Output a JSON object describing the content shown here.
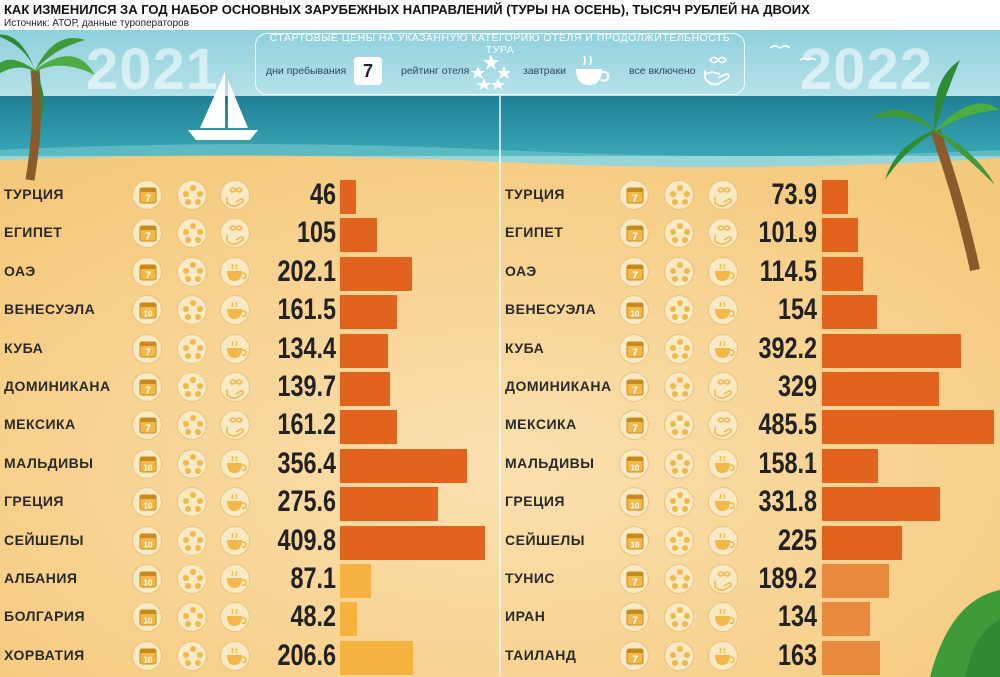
{
  "title": "КАК ИЗМЕНИЛСЯ ЗА ГОД НАБОР ОСНОВНЫХ ЗАРУБЕЖНЫХ НАПРАВЛЕНИЙ (ТУРЫ НА ОСЕНЬ), ТЫСЯЧ РУБЛЕЙ НА ДВОИХ",
  "source": "Источник: АТОР, данные туроператоров",
  "legend": {
    "title": "СТАРТОВЫЕ ЦЕНЫ НА УКАЗАННУЮ КАТЕГОРИЮ ОТЕЛЯ И ПРОДОЛЖИТЕЛЬНОСТЬ ТУРА",
    "days_label": "дни пребывания",
    "days_value": "7",
    "rating_label": "рейтинг отеля",
    "breakfast_label": "завтраки",
    "all_inclusive_label": "все включено"
  },
  "colors": {
    "bar_main": "#e2631e",
    "bar_light_2021": "#f6b240",
    "bar_light_2022": "#e88a3e",
    "sand": "#f6d291",
    "sea": "#2b8fa3",
    "sky": "#8fd0dd"
  },
  "chart_data": [
    {
      "type": "bar",
      "year": "2021",
      "categories": [
        "ТУРЦИЯ",
        "ЕГИПЕТ",
        "ОАЭ",
        "ВЕНЕСУЭЛА",
        "КУБА",
        "ДОМИНИКАНА",
        "МЕКСИКА",
        "МАЛЬДИВЫ",
        "ГРЕЦИЯ",
        "СЕЙШЕЛЫ",
        "АЛБАНИЯ",
        "БОЛГАРИЯ",
        "ХОРВАТИЯ"
      ],
      "values": [
        46,
        105,
        202.1,
        161.5,
        134.4,
        139.7,
        161.2,
        356.4,
        275.6,
        409.8,
        87.1,
        48.2,
        206.6
      ],
      "labels": [
        "46",
        "105",
        "202.1",
        "161.5",
        "134.4",
        "139.7",
        "161.2",
        "356.4",
        "275.6",
        "409.8",
        "87.1",
        "48.2",
        "206.6"
      ],
      "days": [
        "7",
        "7",
        "7",
        "10",
        "7",
        "7",
        "7",
        "10",
        "10",
        "10",
        "10",
        "10",
        "10"
      ],
      "meals": [
        "all-inclusive",
        "all-inclusive",
        "breakfast",
        "breakfast",
        "breakfast",
        "all-inclusive",
        "all-inclusive",
        "breakfast",
        "breakfast",
        "breakfast",
        "breakfast",
        "breakfast",
        "breakfast"
      ],
      "highlight": [
        false,
        false,
        false,
        false,
        false,
        false,
        false,
        false,
        false,
        false,
        true,
        true,
        true
      ]
    },
    {
      "type": "bar",
      "year": "2022",
      "categories": [
        "ТУРЦИЯ",
        "ЕГИПЕТ",
        "ОАЭ",
        "ВЕНЕСУЭЛА",
        "КУБА",
        "ДОМИНИКАНА",
        "МЕКСИКА",
        "МАЛЬДИВЫ",
        "ГРЕЦИЯ",
        "СЕЙШЕЛЫ",
        "ТУНИС",
        "ИРАН",
        "ТАИЛАНД"
      ],
      "values": [
        73.9,
        101.9,
        114.5,
        154,
        392.2,
        329,
        485.5,
        158.1,
        331.8,
        225,
        189.2,
        134,
        163
      ],
      "labels": [
        "73.9",
        "101.9",
        "114.5",
        "154",
        "392.2",
        "329",
        "485.5",
        "158.1",
        "331.8",
        "225",
        "189.2",
        "134",
        "163"
      ],
      "days": [
        "7",
        "7",
        "7",
        "10",
        "7",
        "7",
        "7",
        "10",
        "10",
        "10",
        "7",
        "7",
        "7"
      ],
      "meals": [
        "all-inclusive",
        "all-inclusive",
        "breakfast",
        "breakfast",
        "breakfast",
        "all-inclusive",
        "all-inclusive",
        "breakfast",
        "breakfast",
        "breakfast",
        "all-inclusive",
        "breakfast",
        "breakfast"
      ],
      "highlight": [
        false,
        false,
        false,
        false,
        false,
        false,
        false,
        false,
        false,
        false,
        true,
        true,
        true
      ]
    }
  ]
}
